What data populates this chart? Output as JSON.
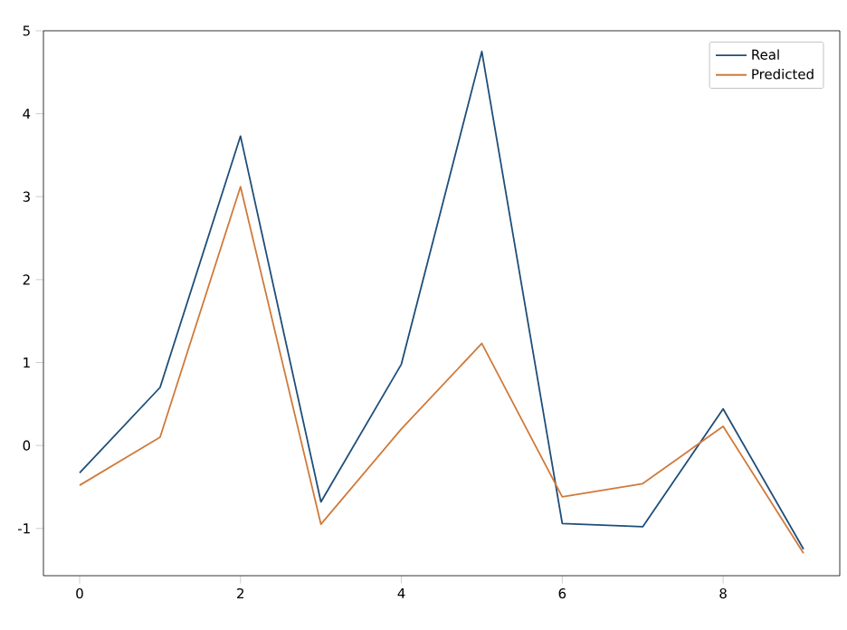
{
  "chart_data": {
    "type": "line",
    "x": [
      0,
      1,
      2,
      3,
      4,
      5,
      6,
      7,
      8,
      9
    ],
    "series": [
      {
        "name": "Real",
        "color": "#1f4e79",
        "values": [
          -0.33,
          0.7,
          3.73,
          -0.68,
          0.98,
          4.75,
          -0.94,
          -0.98,
          0.44,
          -1.25
        ]
      },
      {
        "name": "Predicted",
        "color": "#d07a3a",
        "values": [
          -0.48,
          0.1,
          3.12,
          -0.95,
          0.2,
          1.23,
          -0.62,
          -0.46,
          0.23,
          -1.3
        ]
      }
    ],
    "xlim": [
      -0.45,
      9.45
    ],
    "ylim": [
      -1.57,
      5.0
    ],
    "xticks": [
      0,
      2,
      4,
      6,
      8
    ],
    "yticks": [
      -1,
      0,
      1,
      2,
      3,
      4,
      5
    ],
    "legend": "top right"
  }
}
